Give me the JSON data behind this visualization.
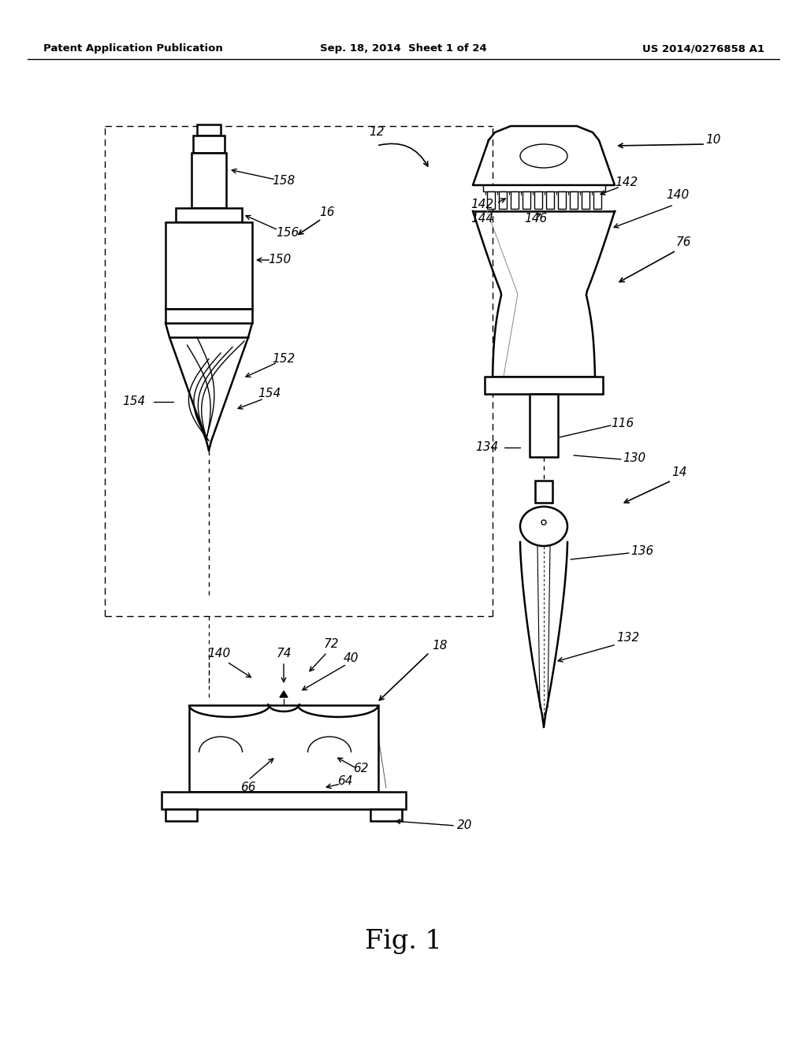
{
  "title": "Fig. 1",
  "header_left": "Patent Application Publication",
  "header_center": "Sep. 18, 2014  Sheet 1 of 24",
  "header_right": "US 2014/0276858 A1",
  "bg_color": "#ffffff"
}
